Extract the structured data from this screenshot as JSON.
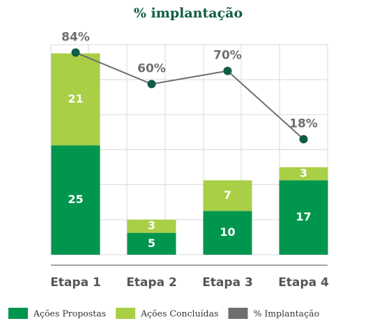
{
  "chart_data": {
    "type": "bar",
    "stacked": true,
    "title": "% implantação",
    "categories": [
      "Etapa 1",
      "Etapa 2",
      "Etapa 3",
      "Etapa 4"
    ],
    "series": [
      {
        "name": "Ações Propostas",
        "color": "#00964e",
        "values": [
          25,
          5,
          10,
          17
        ]
      },
      {
        "name": "Ações Concluídas",
        "color": "#a8cf45",
        "values": [
          21,
          3,
          7,
          3
        ]
      },
      {
        "name": "% Implantação",
        "type": "line",
        "axis": "y2",
        "color": "#6d6e70",
        "marker_color": "#0f5c47",
        "values": [
          84,
          60,
          70,
          18
        ],
        "value_labels": [
          "84%",
          "60%",
          "70%",
          "18%"
        ]
      }
    ],
    "ylim": [
      0,
      48
    ],
    "yticks": [
      0,
      8,
      16,
      24,
      32,
      40,
      48
    ],
    "y2lim": [
      -70,
      90
    ],
    "grid": true
  }
}
